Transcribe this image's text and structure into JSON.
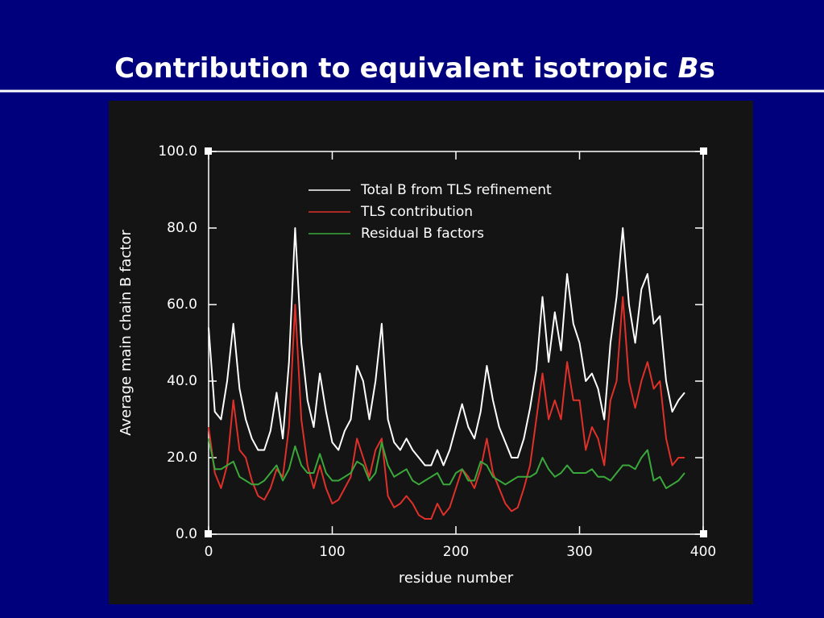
{
  "chart_data": {
    "type": "line",
    "title": [
      "Contribution to equivalent isotropic ",
      "B",
      "s"
    ],
    "xlabel": "residue number",
    "ylabel": "Average main chain B factor",
    "xlim": [
      0,
      400
    ],
    "xticks": [
      0,
      100,
      200,
      300,
      400
    ],
    "ylim": [
      0,
      100
    ],
    "yticks": [
      {
        "value": 0,
        "label": "0.0"
      },
      {
        "value": 20,
        "label": "20.0"
      },
      {
        "value": 40,
        "label": "40.0"
      },
      {
        "value": 60,
        "label": "60.0"
      },
      {
        "value": 80,
        "label": "80.0"
      },
      {
        "value": 100,
        "label": "100.0"
      }
    ],
    "x": [
      0,
      5,
      10,
      15,
      20,
      25,
      30,
      35,
      40,
      45,
      50,
      55,
      60,
      65,
      70,
      75,
      80,
      85,
      90,
      95,
      100,
      105,
      110,
      115,
      120,
      125,
      130,
      135,
      140,
      145,
      150,
      155,
      160,
      165,
      170,
      175,
      180,
      185,
      190,
      195,
      200,
      205,
      210,
      215,
      220,
      225,
      230,
      235,
      240,
      245,
      250,
      255,
      260,
      265,
      270,
      275,
      280,
      285,
      290,
      295,
      300,
      305,
      310,
      315,
      320,
      325,
      330,
      335,
      340,
      345,
      350,
      355,
      360,
      365,
      370,
      375,
      380,
      385
    ],
    "series": [
      {
        "name": "Total B from TLS refinement",
        "color": "#ffffff",
        "values": [
          54,
          32,
          30,
          40,
          55,
          38,
          30,
          25,
          22,
          22,
          27,
          37,
          25,
          45,
          80,
          50,
          35,
          28,
          42,
          32,
          24,
          22,
          27,
          30,
          44,
          40,
          30,
          40,
          55,
          30,
          24,
          22,
          25,
          22,
          20,
          18,
          18,
          22,
          18,
          22,
          28,
          34,
          28,
          25,
          32,
          44,
          35,
          28,
          24,
          20,
          20,
          25,
          33,
          43,
          62,
          45,
          58,
          48,
          68,
          55,
          50,
          40,
          42,
          38,
          30,
          50,
          62,
          80,
          60,
          50,
          64,
          68,
          55,
          57,
          40,
          32,
          35,
          37
        ]
      },
      {
        "name": "TLS contribution",
        "color": "#e0302a",
        "values": [
          28,
          16,
          12,
          18,
          35,
          22,
          20,
          14,
          10,
          9,
          12,
          17,
          15,
          28,
          60,
          30,
          18,
          12,
          18,
          12,
          8,
          9,
          12,
          15,
          25,
          20,
          15,
          22,
          25,
          10,
          7,
          8,
          10,
          8,
          5,
          4,
          4,
          8,
          5,
          7,
          12,
          17,
          15,
          12,
          17,
          25,
          16,
          12,
          8,
          6,
          7,
          12,
          18,
          30,
          42,
          30,
          35,
          30,
          45,
          35,
          35,
          22,
          28,
          25,
          18,
          35,
          40,
          62,
          40,
          33,
          40,
          45,
          38,
          40,
          25,
          18,
          20,
          20
        ]
      },
      {
        "name": "Residual B factors",
        "color": "#3aa83a",
        "values": [
          25,
          17,
          17,
          18,
          19,
          15,
          14,
          13,
          13,
          14,
          16,
          18,
          14,
          17,
          23,
          18,
          16,
          16,
          21,
          16,
          14,
          14,
          15,
          16,
          19,
          18,
          14,
          16,
          24,
          18,
          15,
          16,
          17,
          14,
          13,
          14,
          15,
          16,
          13,
          13,
          16,
          17,
          14,
          14,
          19,
          18,
          15,
          14,
          13,
          14,
          15,
          15,
          15,
          16,
          20,
          17,
          15,
          16,
          18,
          16,
          16,
          16,
          17,
          15,
          15,
          14,
          16,
          18,
          18,
          17,
          20,
          22,
          14,
          15,
          12,
          13,
          14,
          16
        ]
      }
    ]
  }
}
